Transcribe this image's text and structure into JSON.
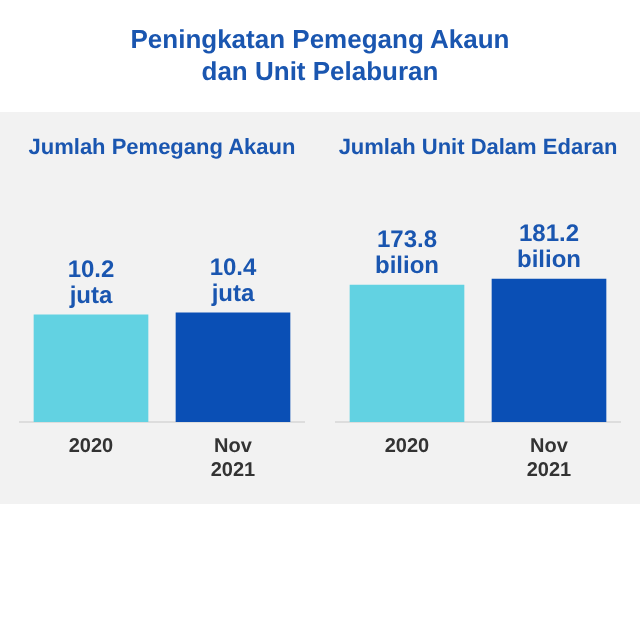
{
  "chart_data": [
    {
      "type": "bar",
      "title": "Peningkatan Pemegang Akaun dan Unit Pelaburan",
      "subtitle": "Jumlah Pemegang Akaun",
      "categories": [
        "2020",
        "Nov 2021"
      ],
      "values": [
        10.2,
        10.4
      ],
      "colors": [
        "#62d2e2",
        "#0a4fb5"
      ],
      "value_labels": [
        "10.2 juta",
        "10.4 juta"
      ],
      "tick_labels": "x",
      "legend": false,
      "grid": false
    },
    {
      "type": "bar",
      "subtitle": "Jumlah Unit Dalam Edaran",
      "categories": [
        "2020",
        "Nov 2021"
      ],
      "values": [
        173.8,
        181.2
      ],
      "colors": [
        "#62d2e2",
        "#0a4fb5"
      ],
      "value_labels": [
        "173.8 bilion",
        "181.2 bilion"
      ],
      "tick_labels": "x",
      "legend": false,
      "grid": false
    }
  ]
}
